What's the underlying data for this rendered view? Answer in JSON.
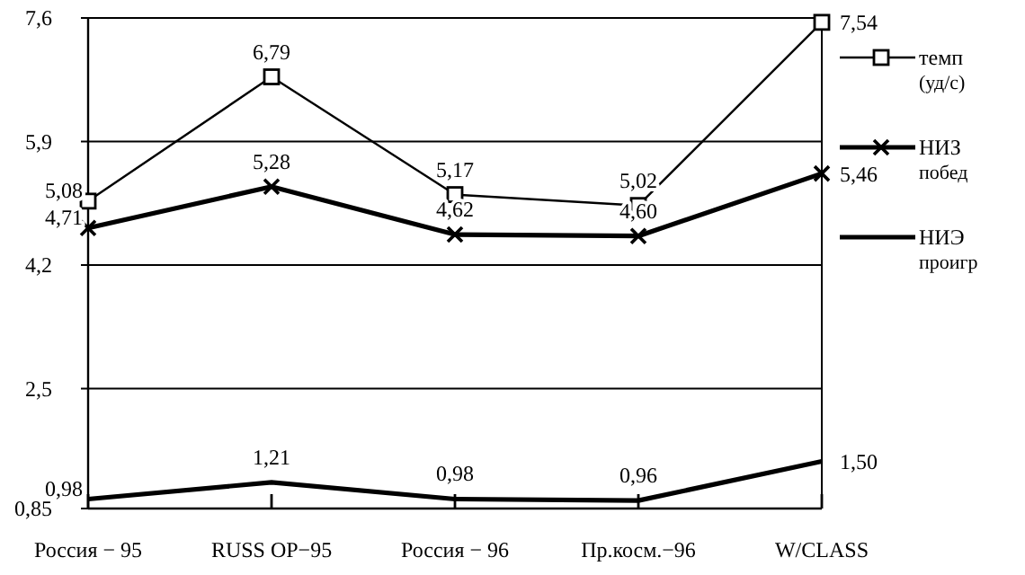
{
  "chart_data": {
    "type": "line",
    "categories": [
      "Россия − 95",
      "RUSS OP−95",
      "Россия − 96",
      "Пр.косм.−96",
      "W/CLASS"
    ],
    "series": [
      {
        "name": "темп (уд/с)",
        "color": "#000000",
        "marker": "square",
        "values": [
          5.08,
          6.79,
          5.17,
          5.02,
          7.54
        ],
        "value_labels": [
          "5,08",
          "6,79",
          "5,17",
          "5,02",
          "7,54"
        ]
      },
      {
        "name": "НИЗ побед",
        "color": "#000000",
        "marker": "cross",
        "values": [
          4.71,
          5.28,
          4.62,
          4.6,
          5.46
        ],
        "value_labels": [
          "4,71",
          "5,28",
          "4,62",
          "4,60",
          "5,46"
        ]
      },
      {
        "name": "НИЭ проигр",
        "color": "#000000",
        "marker": "none",
        "values": [
          0.98,
          1.21,
          0.98,
          0.96,
          1.5
        ],
        "value_labels": [
          "0,98",
          "1,21",
          "0,98",
          "0,96",
          "1,50"
        ]
      }
    ],
    "ylim": [
      0.85,
      7.6
    ],
    "yticks": [
      {
        "value": 0.85,
        "label": "0,85"
      },
      {
        "value": 2.5,
        "label": "2,5"
      },
      {
        "value": 4.2,
        "label": "4,2"
      },
      {
        "value": 5.9,
        "label": "5,9"
      },
      {
        "value": 7.6,
        "label": "7,6"
      }
    ],
    "grid": "y",
    "legend": "right",
    "line_style": "solid"
  }
}
